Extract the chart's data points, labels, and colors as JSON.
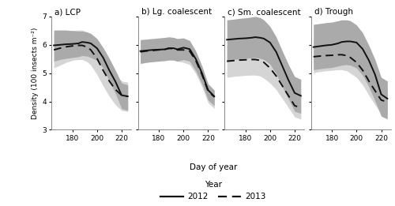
{
  "panels": [
    "a) LCP",
    "b) Lg. coalescent",
    "c) Sm. coalescent",
    "d) Trough"
  ],
  "x": [
    165,
    170,
    175,
    180,
    185,
    188,
    192,
    195,
    200,
    205,
    210,
    215,
    220,
    225
  ],
  "y2012": [
    [
      5.98,
      6.0,
      6.02,
      6.03,
      6.05,
      6.1,
      6.08,
      6.05,
      5.88,
      5.55,
      5.1,
      4.7,
      4.22,
      4.18
    ],
    [
      5.78,
      5.8,
      5.82,
      5.83,
      5.84,
      5.88,
      5.88,
      5.84,
      5.9,
      5.85,
      5.5,
      5.0,
      4.4,
      4.18
    ],
    [
      6.18,
      6.2,
      6.22,
      6.23,
      6.25,
      6.27,
      6.25,
      6.22,
      6.08,
      5.75,
      5.25,
      4.75,
      4.3,
      4.2
    ],
    [
      5.92,
      5.95,
      5.98,
      6.0,
      6.05,
      6.1,
      6.12,
      6.12,
      6.08,
      5.85,
      5.45,
      4.95,
      4.25,
      4.1
    ]
  ],
  "y2013": [
    [
      5.82,
      5.88,
      5.93,
      5.96,
      5.98,
      5.98,
      5.92,
      5.82,
      5.52,
      5.1,
      4.72,
      4.42,
      4.22,
      4.18
    ],
    [
      5.75,
      5.78,
      5.8,
      5.82,
      5.84,
      5.87,
      5.87,
      5.82,
      5.82,
      5.78,
      5.44,
      4.95,
      4.36,
      4.16
    ],
    [
      5.42,
      5.44,
      5.46,
      5.47,
      5.48,
      5.48,
      5.45,
      5.38,
      5.18,
      4.9,
      4.55,
      4.2,
      3.85,
      3.78
    ],
    [
      5.58,
      5.6,
      5.62,
      5.63,
      5.65,
      5.65,
      5.62,
      5.55,
      5.38,
      5.1,
      4.72,
      4.38,
      4.05,
      3.98
    ]
  ],
  "se2012_upper": [
    [
      6.52,
      6.52,
      6.52,
      6.5,
      6.48,
      6.48,
      6.45,
      6.4,
      6.22,
      5.9,
      5.52,
      5.1,
      4.65,
      4.58
    ],
    [
      6.18,
      6.2,
      6.22,
      6.24,
      6.26,
      6.28,
      6.26,
      6.22,
      6.24,
      6.15,
      5.78,
      5.25,
      4.62,
      4.4
    ],
    [
      6.88,
      6.9,
      6.93,
      6.95,
      6.98,
      7.0,
      6.96,
      6.88,
      6.65,
      6.28,
      5.78,
      5.3,
      4.88,
      4.78
    ],
    [
      6.72,
      6.75,
      6.78,
      6.8,
      6.85,
      6.88,
      6.88,
      6.85,
      6.7,
      6.42,
      5.98,
      5.48,
      4.85,
      4.72
    ]
  ],
  "se2012_lower": [
    [
      5.42,
      5.48,
      5.52,
      5.55,
      5.58,
      5.62,
      5.6,
      5.55,
      5.45,
      5.18,
      4.72,
      4.28,
      3.75,
      3.68
    ],
    [
      5.35,
      5.38,
      5.4,
      5.42,
      5.44,
      5.46,
      5.46,
      5.42,
      5.48,
      5.42,
      5.08,
      4.62,
      4.05,
      3.85
    ],
    [
      5.45,
      5.48,
      5.5,
      5.52,
      5.54,
      5.55,
      5.52,
      5.48,
      5.32,
      4.98,
      4.52,
      4.08,
      3.65,
      3.58
    ],
    [
      5.12,
      5.15,
      5.18,
      5.2,
      5.25,
      5.28,
      5.3,
      5.28,
      5.18,
      4.92,
      4.52,
      4.02,
      3.48,
      3.38
    ]
  ],
  "se2013_upper": [
    [
      6.42,
      6.45,
      6.48,
      6.5,
      6.52,
      6.52,
      6.45,
      6.32,
      5.98,
      5.58,
      5.22,
      4.92,
      4.72,
      4.68
    ],
    [
      6.12,
      6.15,
      6.18,
      6.2,
      6.22,
      6.22,
      6.2,
      6.15,
      6.12,
      6.05,
      5.68,
      5.18,
      4.55,
      4.35
    ],
    [
      5.98,
      6.0,
      6.02,
      6.04,
      6.06,
      6.06,
      6.02,
      5.92,
      5.68,
      5.38,
      5.05,
      4.72,
      4.38,
      4.32
    ],
    [
      6.12,
      6.15,
      6.18,
      6.2,
      6.22,
      6.22,
      6.18,
      6.1,
      5.88,
      5.58,
      5.22,
      4.88,
      4.58,
      4.52
    ]
  ],
  "se2013_lower": [
    [
      5.18,
      5.28,
      5.38,
      5.45,
      5.48,
      5.48,
      5.4,
      5.28,
      4.95,
      4.55,
      4.18,
      3.88,
      3.68,
      3.65
    ],
    [
      5.32,
      5.38,
      5.42,
      5.45,
      5.47,
      5.48,
      5.46,
      5.42,
      5.38,
      5.3,
      4.98,
      4.52,
      3.95,
      3.75
    ],
    [
      4.85,
      4.88,
      4.9,
      4.92,
      4.93,
      4.93,
      4.9,
      4.82,
      4.65,
      4.42,
      4.1,
      3.78,
      3.45,
      3.38
    ],
    [
      5.02,
      5.05,
      5.08,
      5.1,
      5.12,
      5.12,
      5.08,
      5.0,
      4.85,
      4.58,
      4.22,
      3.88,
      3.58,
      3.52
    ]
  ],
  "ylim": [
    3,
    7
  ],
  "yticks": [
    3,
    4,
    5,
    6,
    7
  ],
  "xticks": [
    180,
    200,
    220
  ],
  "xlabel": "Day of year",
  "ylabel": "Density (100 insects m⁻²)",
  "color_2012": "#111111",
  "color_2013": "#111111",
  "se_color_2012": "#aaaaaa",
  "se_color_2013": "#d5d5d5",
  "bg_color": "#ffffff",
  "legend_title": "Year"
}
